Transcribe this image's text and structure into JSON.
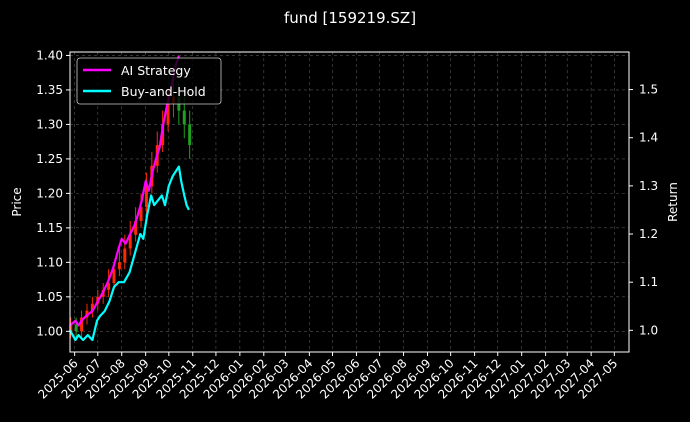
{
  "chart_data": {
    "type": "line",
    "title": "fund [159219.SZ]",
    "ylabel_left": "Price",
    "ylabel_right": "Return",
    "grid": true,
    "legend_position": "top-left",
    "colors": {
      "background": "#000000",
      "axes": "#ffffff",
      "grid": "#555555",
      "candle_up": "#ff2a00",
      "candle_down": "#1fa01f"
    },
    "x_ticks": [
      "2025-06",
      "2025-07",
      "2025-08",
      "2025-09",
      "2025-10",
      "2025-11",
      "2025-12",
      "2026-01",
      "2026-02",
      "2026-03",
      "2026-04",
      "2026-05",
      "2026-06",
      "2026-07",
      "2026-08",
      "2026-09",
      "2026-10",
      "2026-11",
      "2026-12",
      "2027-01",
      "2027-02",
      "2027-03",
      "2027-04",
      "2027-05"
    ],
    "xlim": [
      "2025-05-26",
      "2027-05-20"
    ],
    "ylim_left": [
      0.97,
      1.405
    ],
    "y_ticks_left": [
      "1.00",
      "1.05",
      "1.10",
      "1.15",
      "1.20",
      "1.25",
      "1.30",
      "1.35",
      "1.40"
    ],
    "ylim_right": [
      0.955,
      1.578
    ],
    "y_ticks_right": [
      "1.0",
      "1.1",
      "1.2",
      "1.3",
      "1.4",
      "1.5"
    ],
    "series": [
      {
        "name": "AI Strategy",
        "axis": "right",
        "color": "#ff00ff",
        "x": [
          "2025-05-26",
          "2025-06-02",
          "2025-06-06",
          "2025-06-10",
          "2025-06-16",
          "2025-06-24",
          "2025-07-01",
          "2025-07-08",
          "2025-07-14",
          "2025-07-21",
          "2025-07-28",
          "2025-08-01",
          "2025-08-06",
          "2025-08-12",
          "2025-08-18",
          "2025-08-22",
          "2025-08-27",
          "2025-09-01",
          "2025-09-05",
          "2025-09-10",
          "2025-09-15",
          "2025-09-19",
          "2025-09-24",
          "2025-09-29",
          "2025-10-02",
          "2025-10-06",
          "2025-10-10",
          "2025-10-14"
        ],
        "values": [
          1.01,
          1.02,
          1.01,
          1.02,
          1.03,
          1.04,
          1.06,
          1.08,
          1.1,
          1.13,
          1.17,
          1.19,
          1.18,
          1.2,
          1.22,
          1.24,
          1.27,
          1.31,
          1.29,
          1.33,
          1.36,
          1.38,
          1.43,
          1.47,
          1.49,
          1.52,
          1.55,
          1.57
        ]
      },
      {
        "name": "Buy-and-Hold",
        "axis": "right",
        "color": "#00ffff",
        "x": [
          "2025-05-26",
          "2025-06-02",
          "2025-06-06",
          "2025-06-12",
          "2025-06-18",
          "2025-06-24",
          "2025-06-30",
          "2025-07-04",
          "2025-07-10",
          "2025-07-16",
          "2025-07-22",
          "2025-07-28",
          "2025-08-04",
          "2025-08-11",
          "2025-08-18",
          "2025-08-25",
          "2025-08-29",
          "2025-09-03",
          "2025-09-08",
          "2025-09-12",
          "2025-09-17",
          "2025-09-22",
          "2025-09-26",
          "2025-10-01",
          "2025-10-06",
          "2025-10-10",
          "2025-10-14",
          "2025-10-17",
          "2025-10-21",
          "2025-10-24",
          "2025-10-27"
        ],
        "values": [
          1.0,
          0.98,
          0.99,
          0.98,
          0.99,
          0.98,
          1.02,
          1.03,
          1.04,
          1.06,
          1.09,
          1.1,
          1.1,
          1.12,
          1.16,
          1.2,
          1.19,
          1.24,
          1.28,
          1.26,
          1.27,
          1.28,
          1.26,
          1.3,
          1.32,
          1.33,
          1.34,
          1.31,
          1.28,
          1.26,
          1.25
        ]
      }
    ],
    "candles": {
      "axis": "left",
      "x": [
        "2025-05-27",
        "2025-06-03",
        "2025-06-10",
        "2025-06-17",
        "2025-06-24",
        "2025-07-01",
        "2025-07-08",
        "2025-07-15",
        "2025-07-22",
        "2025-07-29",
        "2025-08-05",
        "2025-08-12",
        "2025-08-19",
        "2025-08-26",
        "2025-09-02",
        "2025-09-09",
        "2025-09-16",
        "2025-09-23",
        "2025-09-30",
        "2025-10-07",
        "2025-10-14",
        "2025-10-21",
        "2025-10-28"
      ],
      "open": [
        1.0,
        1.01,
        1.0,
        1.02,
        1.03,
        1.04,
        1.05,
        1.06,
        1.07,
        1.09,
        1.1,
        1.12,
        1.14,
        1.16,
        1.18,
        1.21,
        1.24,
        1.27,
        1.3,
        1.33,
        1.34,
        1.32,
        1.3
      ],
      "close": [
        1.01,
        1.0,
        1.02,
        1.03,
        1.04,
        1.05,
        1.06,
        1.07,
        1.09,
        1.1,
        1.12,
        1.14,
        1.16,
        1.18,
        1.21,
        1.24,
        1.27,
        1.3,
        1.33,
        1.34,
        1.32,
        1.3,
        1.27
      ],
      "high": [
        1.02,
        1.02,
        1.03,
        1.04,
        1.05,
        1.06,
        1.07,
        1.09,
        1.1,
        1.12,
        1.14,
        1.16,
        1.18,
        1.2,
        1.23,
        1.26,
        1.29,
        1.32,
        1.35,
        1.37,
        1.36,
        1.34,
        1.32
      ],
      "low": [
        0.99,
        0.99,
        0.99,
        1.01,
        1.02,
        1.03,
        1.04,
        1.05,
        1.06,
        1.08,
        1.09,
        1.11,
        1.13,
        1.15,
        1.17,
        1.2,
        1.23,
        1.26,
        1.29,
        1.31,
        1.3,
        1.28,
        1.25
      ]
    }
  }
}
